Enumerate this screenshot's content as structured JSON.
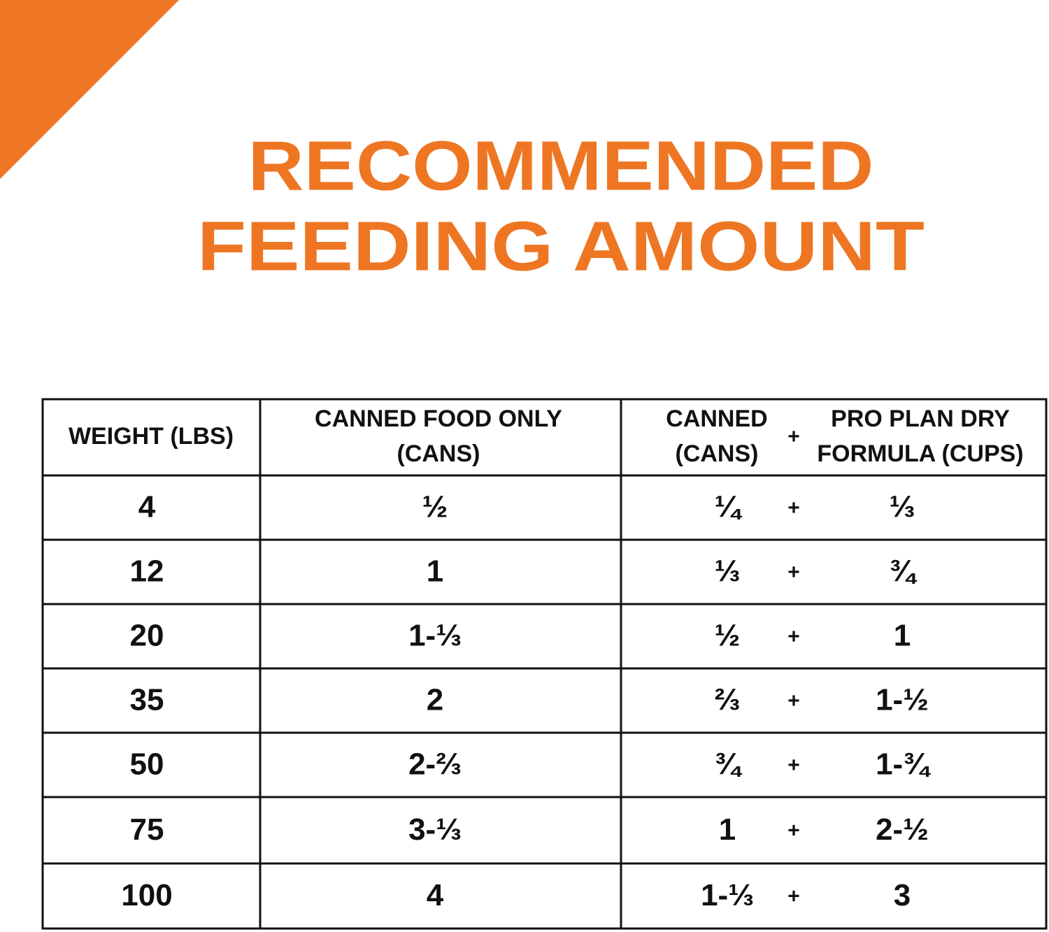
{
  "title": {
    "lines": [
      "RECOMMENDED",
      "FEEDING AMOUNT"
    ]
  },
  "table": {
    "headers": {
      "weight": "WEIGHT (LBS)",
      "canned_only": [
        "CANNED FOOD ONLY",
        "(CANS)"
      ],
      "combo_canned": [
        "CANNED",
        "(CANS)"
      ],
      "combo_dry": [
        "PRO PLAN DRY",
        "FORMULA (CUPS)"
      ]
    },
    "plus_sign": "+",
    "rows": [
      [
        "4",
        "½",
        "¼",
        "⅓"
      ],
      [
        "12",
        "1",
        "⅓",
        "¾"
      ],
      [
        "20",
        "1-⅓",
        "½",
        "1"
      ],
      [
        "35",
        "2",
        "⅔",
        "1-½"
      ],
      [
        "50",
        "2-⅔",
        "¾",
        "1-¾"
      ],
      [
        "75",
        "3-⅓",
        "1",
        "2-½"
      ],
      [
        "100",
        "4",
        "1-⅓",
        "3"
      ]
    ]
  }
}
